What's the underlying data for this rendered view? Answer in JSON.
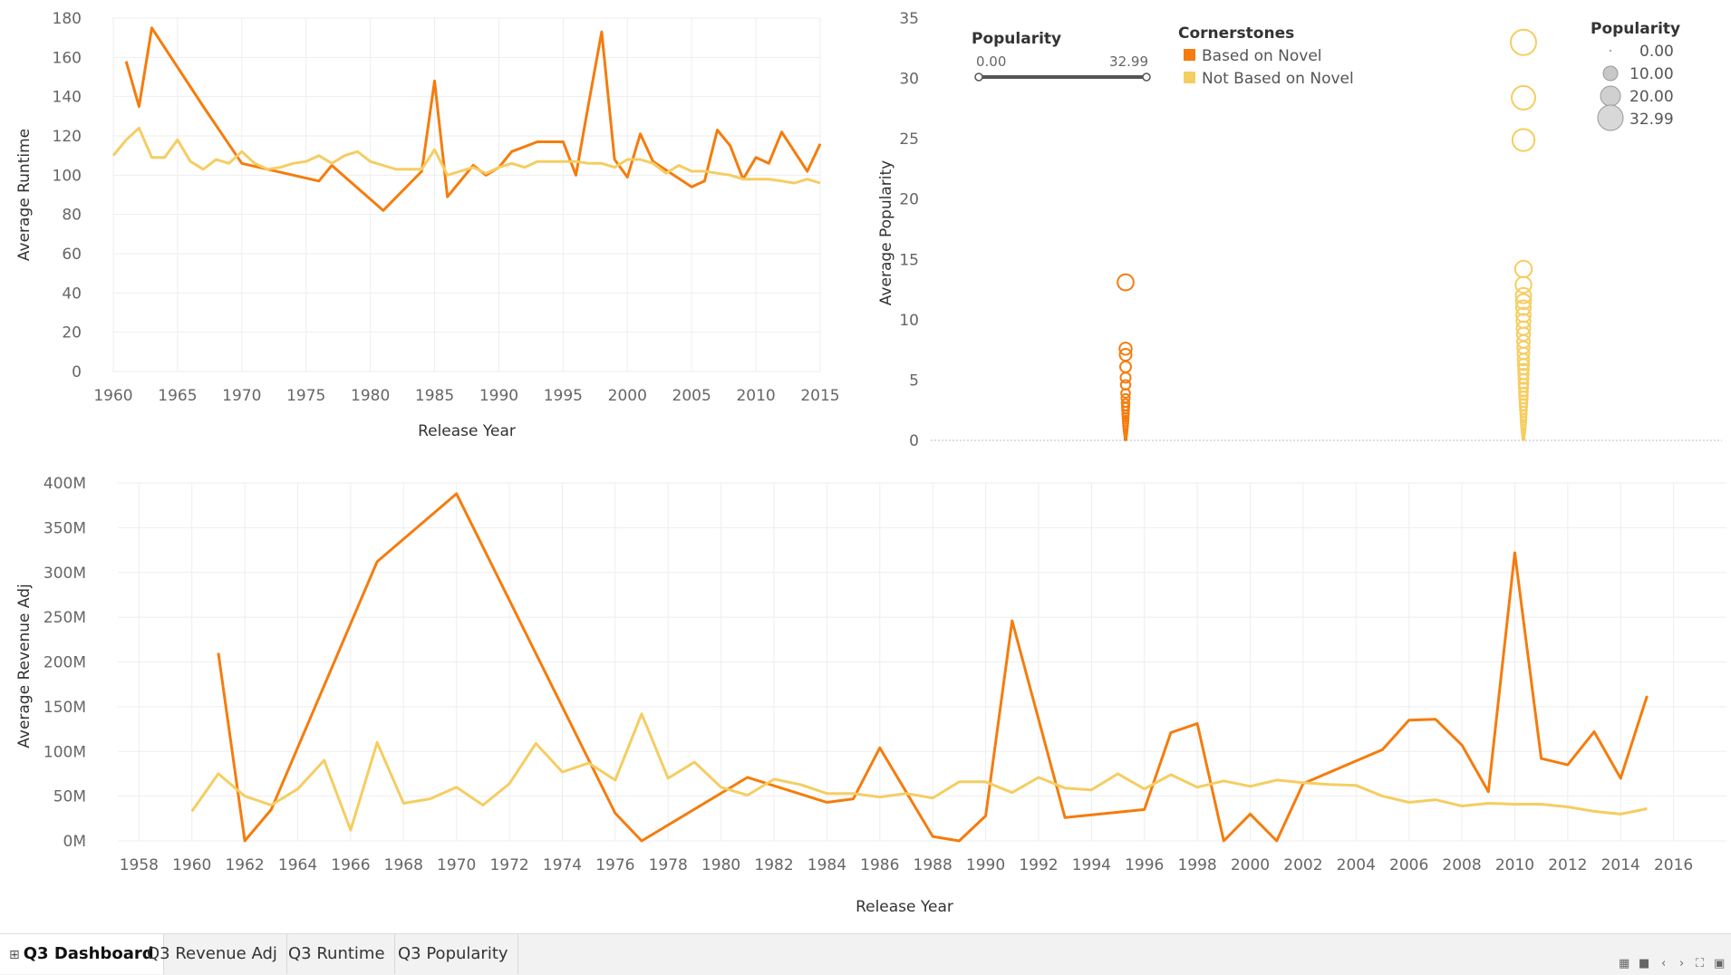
{
  "colors": {
    "novel": "#f57c0d",
    "not_novel": "#f5cd61"
  },
  "tabs": [
    {
      "label": "Q3 Dashboard",
      "active": true
    },
    {
      "label": "Q3 Revenue Adj"
    },
    {
      "label": "Q3 Runtime"
    },
    {
      "label": "Q3 Popularity"
    }
  ],
  "tab_icon": "grid-icon",
  "nav_icons": [
    "grid-view-icon",
    "single-view-icon",
    "prev-icon",
    "next-icon",
    "fullscreen-icon",
    "present-icon"
  ],
  "chart_data": [
    {
      "id": "runtime",
      "type": "line",
      "xlabel": "Release Year",
      "ylabel": "Average Runtime",
      "xlim": [
        1960,
        2015
      ],
      "ylim": [
        0,
        180
      ],
      "xticks": [
        "1960",
        "1965",
        "1970",
        "1975",
        "1980",
        "1985",
        "1990",
        "1995",
        "2000",
        "2005",
        "2010",
        "2015"
      ],
      "yticks": [
        "0",
        "20",
        "40",
        "60",
        "80",
        "100",
        "120",
        "140",
        "160",
        "180"
      ],
      "series": [
        {
          "name": "Based on Novel",
          "color": "#f57c0d",
          "x": [
            1961,
            1962,
            1963,
            1967,
            1970,
            1976,
            1977,
            1981,
            1984,
            1985,
            1986,
            1988,
            1989,
            1990,
            1991,
            1993,
            1995,
            1996,
            1997,
            1998,
            1999,
            2000,
            2001,
            2002,
            2005,
            2006,
            2007,
            2008,
            2009,
            2010,
            2011,
            2012,
            2014,
            2015
          ],
          "y": [
            158,
            135,
            175,
            135,
            106,
            97,
            105,
            82,
            102,
            148,
            89,
            105,
            100,
            104,
            112,
            117,
            117,
            100,
            137,
            173,
            108,
            99,
            121,
            107,
            94,
            97,
            123,
            115,
            98,
            109,
            106,
            122,
            102,
            116
          ]
        },
        {
          "name": "Not Based on Novel",
          "color": "#f5cd61",
          "x": [
            1960,
            1961,
            1962,
            1963,
            1964,
            1965,
            1966,
            1967,
            1968,
            1969,
            1970,
            1971,
            1972,
            1973,
            1974,
            1975,
            1976,
            1977,
            1978,
            1979,
            1980,
            1981,
            1982,
            1983,
            1984,
            1985,
            1986,
            1987,
            1988,
            1989,
            1990,
            1991,
            1992,
            1993,
            1994,
            1995,
            1996,
            1997,
            1998,
            1999,
            2000,
            2001,
            2002,
            2003,
            2004,
            2005,
            2006,
            2007,
            2008,
            2009,
            2010,
            2011,
            2012,
            2013,
            2014,
            2015
          ],
          "y": [
            110,
            118,
            124,
            109,
            109,
            118,
            107,
            103,
            108,
            106,
            112,
            106,
            103,
            104,
            106,
            107,
            110,
            106,
            110,
            112,
            107,
            105,
            103,
            103,
            103,
            113,
            100,
            102,
            104,
            101,
            104,
            106,
            104,
            107,
            107,
            107,
            107,
            106,
            106,
            104,
            108,
            108,
            106,
            101,
            105,
            102,
            102,
            101,
            100,
            98,
            98,
            98,
            97,
            96,
            98,
            96
          ]
        }
      ]
    },
    {
      "id": "popularity",
      "type": "scatter",
      "ylabel": "Average Popularity",
      "ylim": [
        0,
        35
      ],
      "yticks": [
        "0",
        "5",
        "10",
        "15",
        "20",
        "25",
        "30",
        "35"
      ],
      "categories": [
        "Based on Novel",
        "Not Based on Novel"
      ],
      "series": [
        {
          "name": "Based on Novel",
          "color": "#f57c0d",
          "category": 0,
          "values": [
            13.1,
            7.6,
            7.1,
            6.1,
            5.2,
            4.6,
            3.9,
            3.5,
            3.1,
            2.8,
            2.5,
            2.2,
            2.0,
            1.8,
            1.6,
            1.4,
            1.2,
            1.0,
            0.8,
            0.6,
            0.4,
            0.2,
            0.1
          ]
        },
        {
          "name": "Not Based on Novel",
          "color": "#f5cd61",
          "category": 1,
          "values": [
            32.99,
            28.4,
            24.9,
            14.2,
            12.9,
            12.0,
            11.5,
            11.0,
            10.4,
            9.9,
            9.3,
            8.8,
            8.2,
            7.7,
            7.2,
            6.7,
            6.3,
            5.9,
            5.5,
            5.1,
            4.7,
            4.4,
            4.0,
            3.7,
            3.4,
            3.1,
            2.8,
            2.5,
            2.2,
            1.9,
            1.7,
            1.5,
            1.3,
            1.1,
            0.9,
            0.7,
            0.5,
            0.3,
            0.2,
            0.1
          ]
        }
      ],
      "size_legend": {
        "title": "Popularity",
        "values": [
          "0.00",
          "10.00",
          "20.00",
          "32.99"
        ]
      },
      "slider": {
        "title": "Popularity",
        "min": "0.00",
        "max": "32.99"
      },
      "color_legend": {
        "title": "Cornerstones",
        "items": [
          "Based on Novel",
          "Not Based on Novel"
        ]
      }
    },
    {
      "id": "revenue",
      "type": "line",
      "xlabel": "Release Year",
      "ylabel": "Average Revenue Adj",
      "xlim": [
        1957.2,
        2018
      ],
      "ylim": [
        0,
        400000000
      ],
      "xticks": [
        "1958",
        "1960",
        "1962",
        "1964",
        "1966",
        "1968",
        "1970",
        "1972",
        "1974",
        "1976",
        "1978",
        "1980",
        "1982",
        "1984",
        "1986",
        "1988",
        "1990",
        "1992",
        "1994",
        "1996",
        "1998",
        "2000",
        "2002",
        "2004",
        "2006",
        "2008",
        "2010",
        "2012",
        "2014",
        "2016"
      ],
      "yticks": [
        "0M",
        "50M",
        "100M",
        "150M",
        "200M",
        "250M",
        "300M",
        "350M",
        "400M"
      ],
      "series": [
        {
          "name": "Based on Novel",
          "color": "#f57c0d",
          "x": [
            1961,
            1962,
            1963,
            1967,
            1970,
            1976,
            1977,
            1981,
            1984,
            1985,
            1986,
            1988,
            1989,
            1990,
            1991,
            1993,
            1996,
            1997,
            1998,
            1999,
            2000,
            2001,
            2002,
            2005,
            2006,
            2007,
            2008,
            2009,
            2010,
            2011,
            2012,
            2013,
            2014,
            2015
          ],
          "y": [
            210,
            0,
            35,
            312,
            388,
            31,
            0,
            71,
            43,
            47,
            104,
            5,
            0,
            28,
            246,
            26,
            35,
            121,
            131,
            0,
            30,
            0,
            64,
            102,
            135,
            136,
            107,
            55,
            322,
            92,
            85,
            122,
            70,
            162
          ]
        },
        {
          "name": "Not Based on Novel",
          "color": "#f5cd61",
          "x": [
            1960,
            1961,
            1962,
            1963,
            1964,
            1965,
            1966,
            1967,
            1968,
            1969,
            1970,
            1971,
            1972,
            1973,
            1974,
            1975,
            1976,
            1977,
            1978,
            1979,
            1980,
            1981,
            1982,
            1983,
            1984,
            1985,
            1986,
            1987,
            1988,
            1989,
            1990,
            1991,
            1992,
            1993,
            1994,
            1995,
            1996,
            1997,
            1998,
            1999,
            2000,
            2001,
            2002,
            2003,
            2004,
            2005,
            2006,
            2007,
            2008,
            2009,
            2010,
            2011,
            2012,
            2013,
            2014,
            2015
          ],
          "y": [
            33,
            75,
            50,
            40,
            58,
            90,
            12,
            110,
            42,
            47,
            60,
            40,
            64,
            109,
            77,
            87,
            68,
            142,
            70,
            88,
            60,
            51,
            69,
            63,
            53,
            53,
            49,
            53,
            48,
            66,
            66,
            54,
            71,
            59,
            57,
            75,
            58,
            74,
            60,
            67,
            61,
            68,
            65,
            63,
            62,
            50,
            43,
            46,
            39,
            42,
            41,
            41,
            38,
            33,
            30,
            36
          ]
        }
      ]
    }
  ]
}
